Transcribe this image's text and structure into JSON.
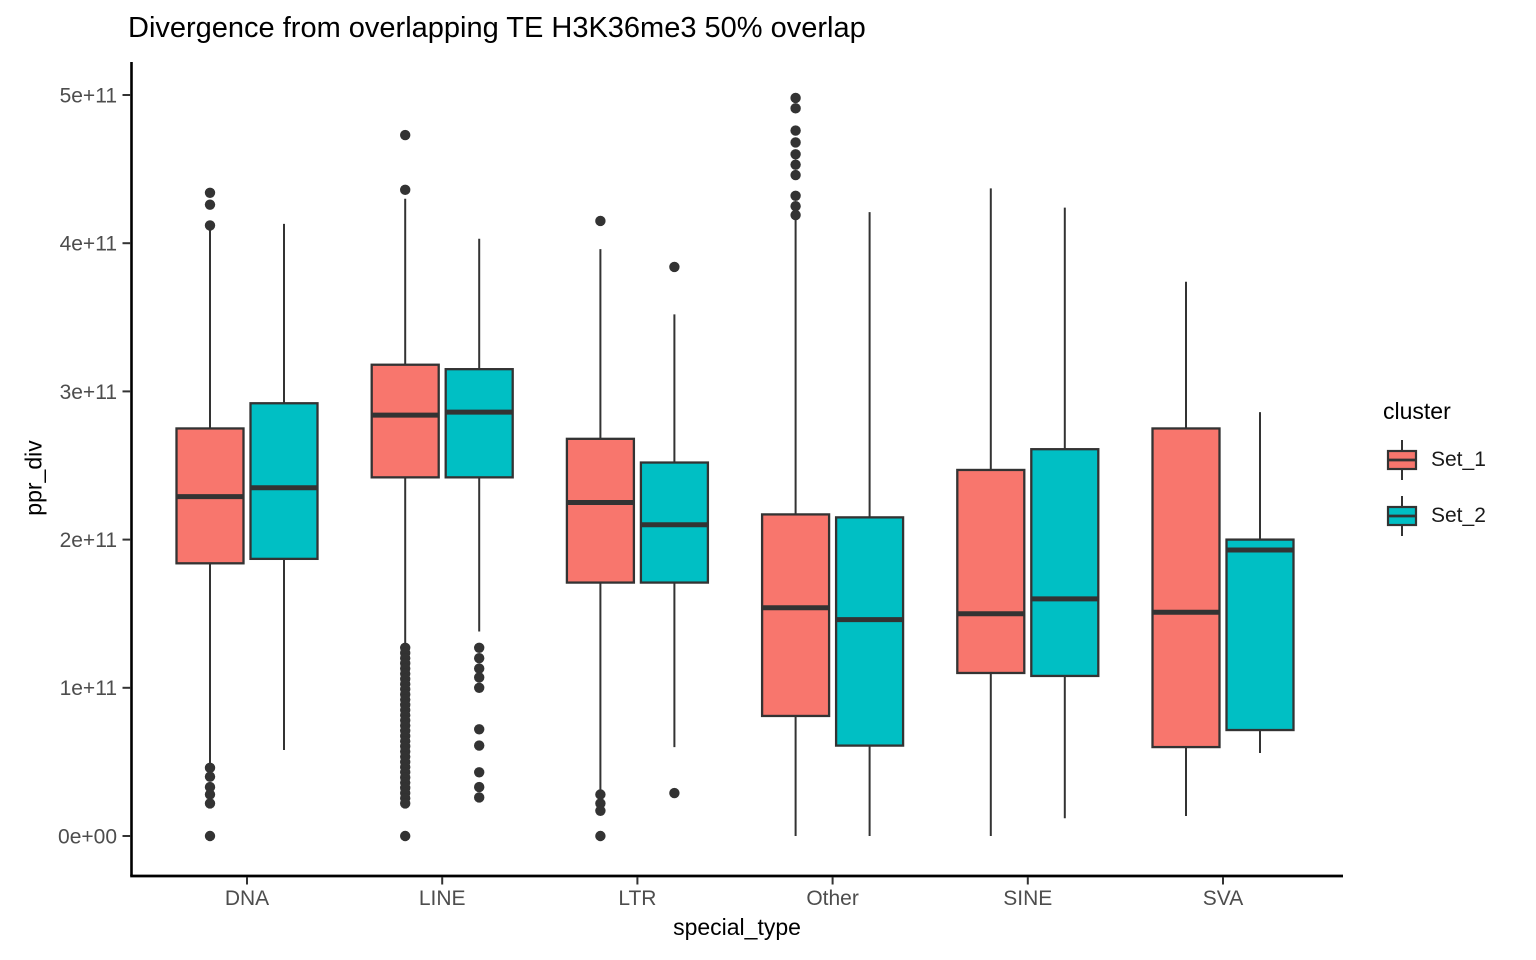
{
  "chart_data": {
    "type": "boxplot",
    "title": "Divergence from overlapping TE H3K36me3 50% overlap",
    "xlabel": "special_type",
    "ylabel": "ppr_div",
    "categories": [
      "DNA",
      "LINE",
      "LTR",
      "Other",
      "SINE",
      "SVA"
    ],
    "ylim": [
      0,
      520000000000.0
    ],
    "grid": false,
    "y_ticks": {
      "values": [
        0,
        100000000000.0,
        200000000000.0,
        300000000000.0,
        400000000000.0,
        500000000000.0
      ],
      "labels": [
        "0e+00",
        "1e+11",
        "2e+11",
        "3e+11",
        "4e+11",
        "5e+11"
      ]
    },
    "legend": {
      "title": "cluster",
      "position": "right"
    },
    "style": {
      "box_stroke": "#333333",
      "outlier_color": "#333333",
      "axis_color": "#000000",
      "tick_color": "#333333",
      "tick_text_color": "#4d4d4d",
      "background": "#ffffff"
    },
    "series": [
      {
        "name": "Set_1",
        "color": "#F8766D",
        "boxes": [
          {
            "category": "DNA",
            "whisker_low": 49000000000.0,
            "q1": 184000000000.0,
            "median": 229000000000.0,
            "q3": 275000000000.0,
            "whisker_high": 410000000000.0,
            "outliers": [
              434000000000.0,
              426000000000.0,
              412000000000.0,
              46000000000.0,
              40000000000.0,
              33000000000.0,
              28000000000.0,
              22000000000.0,
              0
            ]
          },
          {
            "category": "LINE",
            "whisker_low": 129000000000.0,
            "q1": 242000000000.0,
            "median": 284000000000.0,
            "q3": 318000000000.0,
            "whisker_high": 430000000000.0,
            "outliers": [
              473000000000.0,
              436000000000.0,
              127000000000.0,
              123500000000.0,
              120000000000.0,
              116500000000.0,
              113000000000.0,
              109500000000.0,
              106000000000.0,
              102500000000.0,
              99000000000.0,
              95500000000.0,
              92000000000.0,
              88500000000.0,
              85000000000.0,
              81500000000.0,
              78000000000.0,
              74500000000.0,
              71000000000.0,
              67500000000.0,
              64000000000.0,
              60500000000.0,
              57000000000.0,
              53500000000.0,
              50000000000.0,
              46500000000.0,
              43000000000.0,
              39500000000.0,
              36000000000.0,
              32500000000.0,
              29000000000.0,
              25500000000.0,
              22000000000.0,
              0
            ]
          },
          {
            "category": "LTR",
            "whisker_low": 30000000000.0,
            "q1": 171000000000.0,
            "median": 225000000000.0,
            "q3": 268000000000.0,
            "whisker_high": 396000000000.0,
            "outliers": [
              415000000000.0,
              28000000000.0,
              22000000000.0,
              17000000000.0,
              0
            ]
          },
          {
            "category": "Other",
            "whisker_low": 0,
            "q1": 81000000000.0,
            "median": 154000000000.0,
            "q3": 217000000000.0,
            "whisker_high": 417000000000.0,
            "outliers": [
              498000000000.0,
              491000000000.0,
              476000000000.0,
              468000000000.0,
              460000000000.0,
              453000000000.0,
              446000000000.0,
              432000000000.0,
              425000000000.0,
              419000000000.0
            ]
          },
          {
            "category": "SINE",
            "whisker_low": 0,
            "q1": 110000000000.0,
            "median": 150000000000.0,
            "q3": 247000000000.0,
            "whisker_high": 437000000000.0,
            "outliers": []
          },
          {
            "category": "SVA",
            "whisker_low": 13500000000.0,
            "q1": 60000000000.0,
            "median": 151000000000.0,
            "q3": 275000000000.0,
            "whisker_high": 374000000000.0,
            "outliers": []
          }
        ]
      },
      {
        "name": "Set_2",
        "color": "#00BFC4",
        "boxes": [
          {
            "category": "DNA",
            "whisker_low": 58000000000.0,
            "q1": 187000000000.0,
            "median": 235000000000.0,
            "q3": 292000000000.0,
            "whisker_high": 413000000000.0,
            "outliers": []
          },
          {
            "category": "LINE",
            "whisker_low": 138000000000.0,
            "q1": 242000000000.0,
            "median": 286000000000.0,
            "q3": 315000000000.0,
            "whisker_high": 403000000000.0,
            "outliers": [
              127000000000.0,
              120000000000.0,
              113000000000.0,
              107000000000.0,
              100000000000.0,
              72000000000.0,
              61000000000.0,
              43000000000.0,
              33000000000.0,
              26000000000.0
            ]
          },
          {
            "category": "LTR",
            "whisker_low": 60000000000.0,
            "q1": 171000000000.0,
            "median": 210000000000.0,
            "q3": 252000000000.0,
            "whisker_high": 352000000000.0,
            "outliers": [
              384000000000.0,
              29000000000.0
            ]
          },
          {
            "category": "Other",
            "whisker_low": 0,
            "q1": 61000000000.0,
            "median": 146000000000.0,
            "q3": 215000000000.0,
            "whisker_high": 421000000000.0,
            "outliers": []
          },
          {
            "category": "SINE",
            "whisker_low": 12000000000.0,
            "q1": 108000000000.0,
            "median": 160000000000.0,
            "q3": 261000000000.0,
            "whisker_high": 424000000000.0,
            "outliers": []
          },
          {
            "category": "SVA",
            "whisker_low": 56000000000.0,
            "q1": 71500000000.0,
            "median": 193000000000.0,
            "q3": 200000000000.0,
            "whisker_high": 286000000000.0,
            "outliers": []
          }
        ]
      }
    ]
  }
}
